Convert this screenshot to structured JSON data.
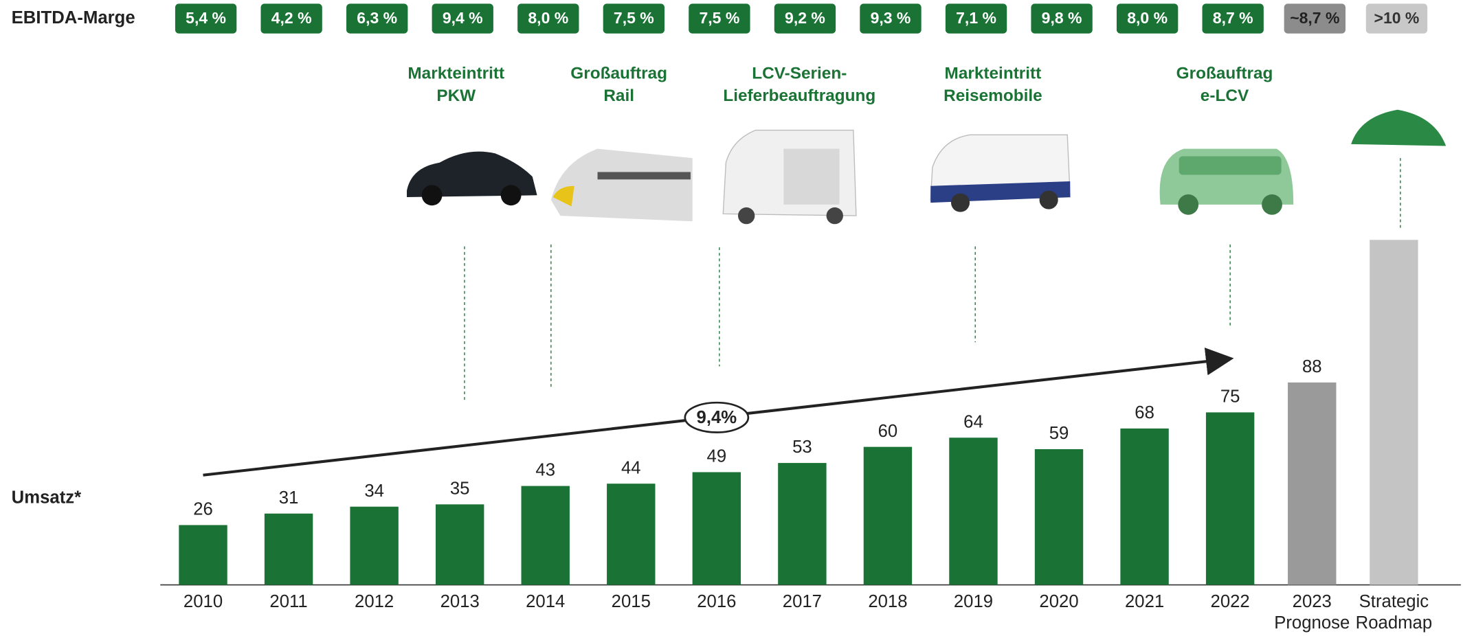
{
  "chart_data": {
    "type": "bar",
    "row_labels": {
      "margin": "EBITDA-Marge",
      "revenue": "Umsatz*"
    },
    "categories": [
      "2010",
      "2011",
      "2012",
      "2013",
      "2014",
      "2015",
      "2016",
      "2017",
      "2018",
      "2019",
      "2020",
      "2021",
      "2022",
      [
        "2023",
        "Prognose"
      ],
      [
        "Strategic",
        "Roadmap"
      ]
    ],
    "values": [
      26,
      31,
      34,
      35,
      43,
      44,
      49,
      53,
      60,
      64,
      59,
      68,
      75,
      88,
      150
    ],
    "value_labels": [
      "26",
      "31",
      "34",
      "35",
      "43",
      "44",
      "49",
      "53",
      "60",
      "64",
      "59",
      "68",
      "75",
      "88",
      null
    ],
    "colors": [
      "#1a7335",
      "#1a7335",
      "#1a7335",
      "#1a7335",
      "#1a7335",
      "#1a7335",
      "#1a7335",
      "#1a7335",
      "#1a7335",
      "#1a7335",
      "#1a7335",
      "#1a7335",
      "#1a7335",
      "#9a9a9a",
      "#c4c4c4"
    ],
    "margins": [
      "5,4 %",
      "4,2 %",
      "6,3 %",
      "9,4 %",
      "8,0 %",
      "7,5 %",
      "7,5 %",
      "9,2 %",
      "9,3 %",
      "7,1 %",
      "9,8 %",
      "8,0 %",
      "8,7 %",
      "~8,7 %",
      ">10 %"
    ],
    "margin_colors": [
      "#1a7335",
      "#1a7335",
      "#1a7335",
      "#1a7335",
      "#1a7335",
      "#1a7335",
      "#1a7335",
      "#1a7335",
      "#1a7335",
      "#1a7335",
      "#1a7335",
      "#1a7335",
      "#1a7335",
      "#8c8c8c",
      "#c8c8c8"
    ],
    "ylim": [
      0,
      150
    ],
    "cagr_label": "9,4%",
    "milestones": [
      {
        "label": [
          "Markteintritt",
          "PKW"
        ]
      },
      {
        "label": [
          "Großauftrag",
          "Rail"
        ]
      },
      {
        "label": [
          "LCV-Serien-",
          "Lieferbeauftragung"
        ]
      },
      {
        "label": [
          "Markteintritt",
          "Reisemobile"
        ]
      },
      {
        "label": [
          "Großauftrag",
          "e-LCV"
        ]
      }
    ]
  }
}
